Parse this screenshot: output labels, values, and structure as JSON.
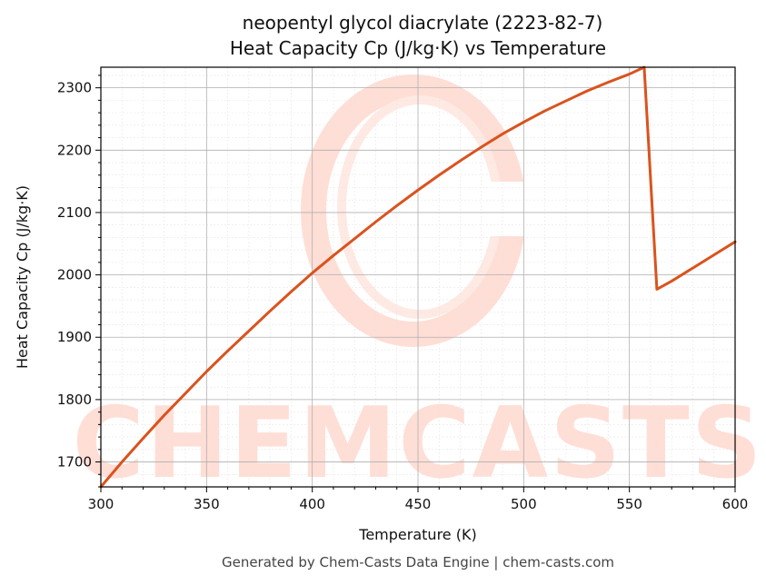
{
  "chart_data": {
    "type": "line",
    "title": "neopentyl glycol diacrylate (2223-82-7)",
    "subtitle": "Heat Capacity Cp (J/kg·K) vs Temperature",
    "xlabel": "Temperature (K)",
    "ylabel": "Heat Capacity Cp (J/kg·K)",
    "xlim": [
      300,
      600
    ],
    "ylim": [
      1660,
      2333
    ],
    "x_ticks": [
      300,
      350,
      400,
      450,
      500,
      550,
      600
    ],
    "y_ticks": [
      1700,
      1800,
      1900,
      2000,
      2100,
      2200,
      2300
    ],
    "grid": true,
    "line_color": "#d9531e",
    "series": [
      {
        "x": [
          300,
          310,
          320,
          330,
          340,
          350,
          360,
          370,
          380,
          390,
          400,
          410,
          420,
          430,
          440,
          450,
          460,
          470,
          480,
          490,
          500,
          510,
          520,
          530,
          540,
          550,
          557,
          563,
          570,
          580,
          590,
          600
        ],
        "values": [
          1660,
          1700,
          1738,
          1775,
          1810,
          1845,
          1878,
          1910,
          1942,
          1973,
          2003,
          2031,
          2058,
          2085,
          2111,
          2136,
          2160,
          2183,
          2205,
          2226,
          2245,
          2263,
          2279,
          2295,
          2309,
          2322,
          2333,
          1977,
          1990,
          2011,
          2032,
          2053
        ]
      }
    ]
  },
  "watermark": {
    "text": "CHEMCASTS",
    "color": "#ffd9d0"
  },
  "footer": {
    "text": "Generated by Chem-Casts Data Engine | chem-casts.com"
  }
}
